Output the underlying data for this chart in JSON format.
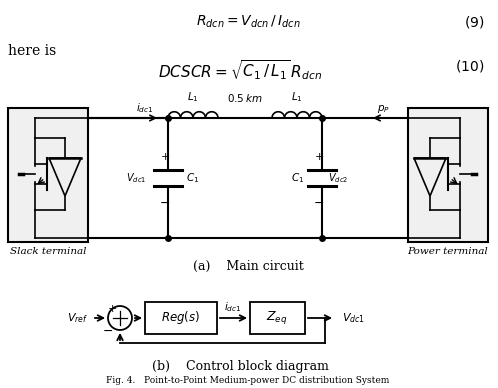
{
  "fig_width": 4.98,
  "fig_height": 3.88,
  "dpi": 100,
  "bg_color": "#ffffff",
  "caption_a": "(a)    Main circuit",
  "caption_b": "(b)    Control block diagram",
  "fig_caption": "Fig. 4.   Point-to-Point Medium-power DC distribution System",
  "label_slack": "Slack terminal",
  "label_power": "Power terminal"
}
